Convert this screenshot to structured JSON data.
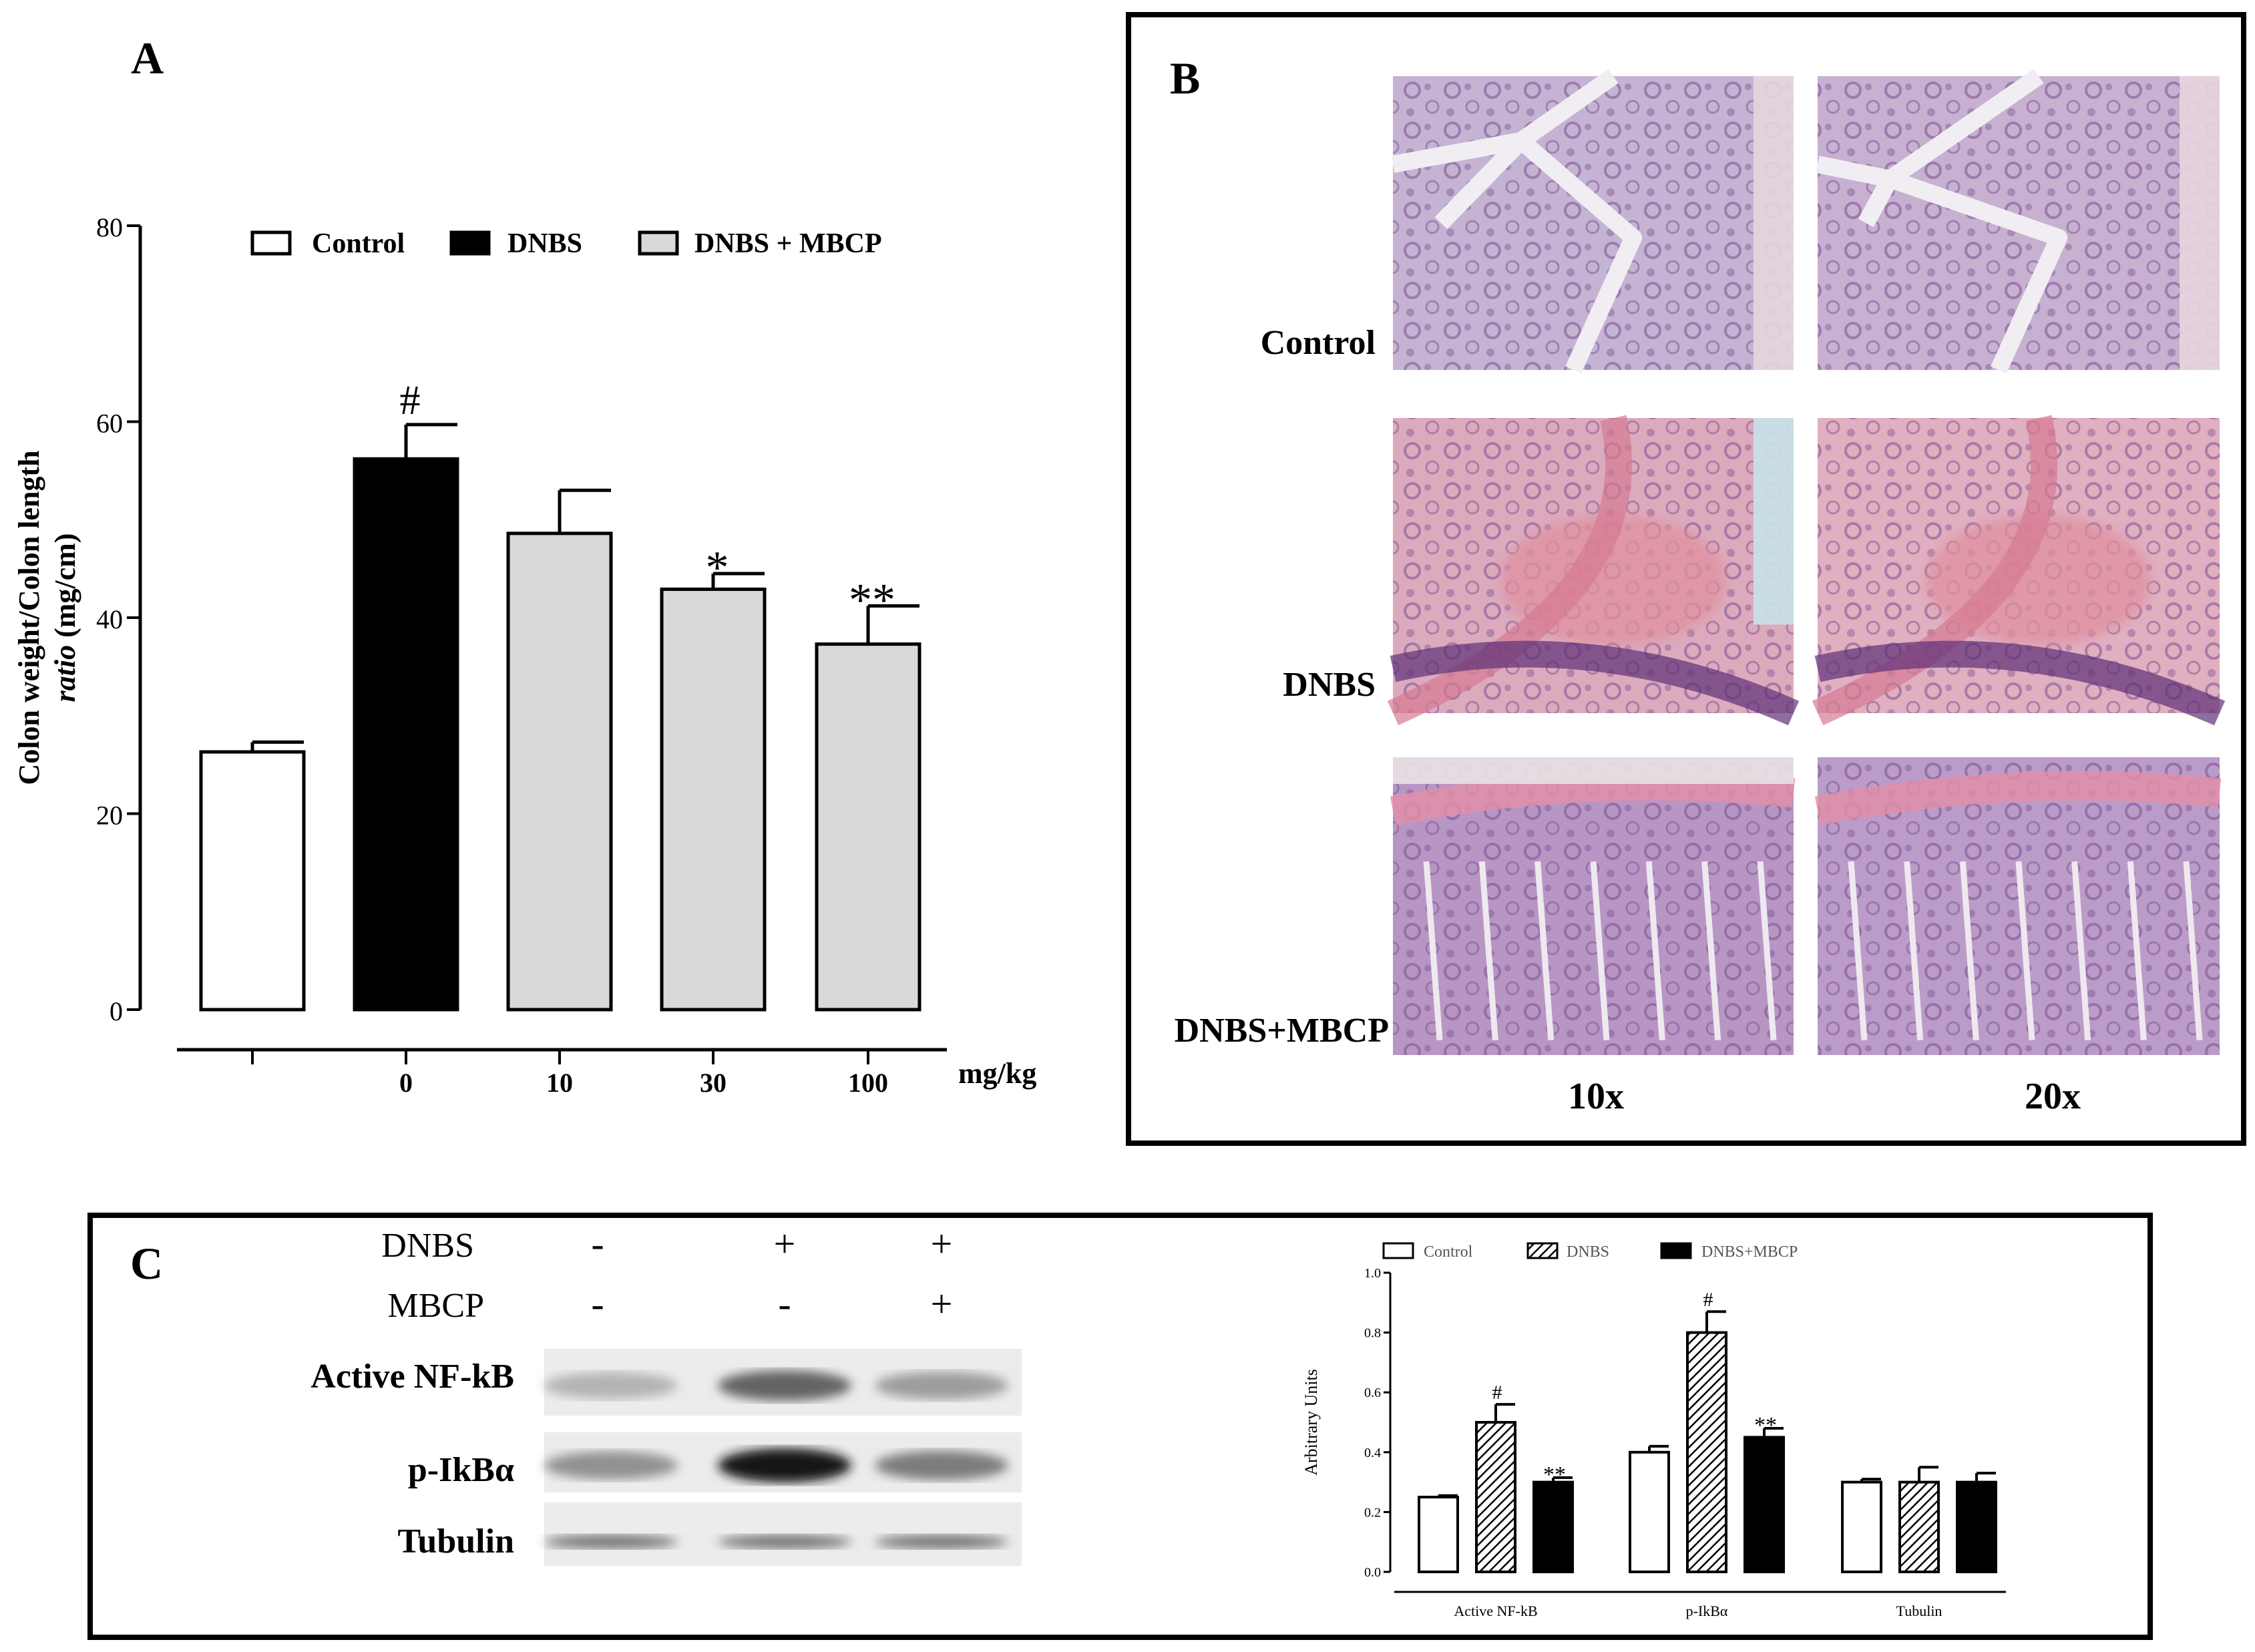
{
  "panel_labels": {
    "a": "A",
    "b": "B",
    "c": "C"
  },
  "chart_data": [
    {
      "type": "bar",
      "panel": "A",
      "ylabel_line1": "Colon weight/Colon length",
      "ylabel_line2_italic": "ratio",
      "ylabel_line2_unit": "(mg/cm)",
      "xunit": "mg/kg",
      "ylim": [
        0,
        80
      ],
      "yticks": [
        0,
        20,
        40,
        60,
        80
      ],
      "legend": [
        {
          "label": "Control",
          "fill": "#ffffff"
        },
        {
          "label": "DNBS",
          "fill": "#000000"
        },
        {
          "label": "DNBS + MBCP",
          "fill": "#d9d9d9"
        }
      ],
      "categories": [
        "-",
        "0",
        "10",
        "30",
        "100"
      ],
      "bars": [
        {
          "value": 26.3,
          "error": 1.0,
          "fill": "#ffffff",
          "annotation": ""
        },
        {
          "value": 56.2,
          "error": 3.5,
          "fill": "#000000",
          "annotation": "#"
        },
        {
          "value": 48.6,
          "error": 4.4,
          "fill": "#d9d9d9",
          "annotation": ""
        },
        {
          "value": 42.9,
          "error": 1.6,
          "fill": "#d9d9d9",
          "annotation": "*"
        },
        {
          "value": 37.3,
          "error": 3.9,
          "fill": "#d9d9d9",
          "annotation": "**"
        }
      ]
    },
    {
      "type": "bar",
      "panel": "C",
      "ylabel": "Arbitrary Units",
      "ylim": [
        0,
        1.0
      ],
      "yticks": [
        "0.0",
        "0.2",
        "0.4",
        "0.6",
        "0.8",
        "1.0"
      ],
      "categories": [
        "Active NF-kB",
        "p-IkBα",
        "Tubulin"
      ],
      "legend": [
        "Control",
        "DNBS",
        "DNBS+MBCP"
      ],
      "series": [
        {
          "name": "Control",
          "fill": "#ffffff",
          "values": [
            0.25,
            0.4,
            0.3
          ],
          "errors": [
            0.005,
            0.02,
            0.01
          ],
          "annotations": [
            "",
            "",
            ""
          ]
        },
        {
          "name": "DNBS",
          "fill": "hatch",
          "values": [
            0.5,
            0.8,
            0.3
          ],
          "errors": [
            0.06,
            0.07,
            0.05
          ],
          "annotations": [
            "#",
            "#",
            ""
          ]
        },
        {
          "name": "DNBS+MBCP",
          "fill": "#000000",
          "values": [
            0.3,
            0.45,
            0.3
          ],
          "errors": [
            0.015,
            0.03,
            0.03
          ],
          "annotations": [
            "**",
            "**",
            ""
          ]
        }
      ]
    }
  ],
  "panel_b": {
    "row_labels": [
      "Control",
      "DNBS",
      "DNBS+MBCP"
    ],
    "col_labels": [
      "10x",
      "20x"
    ],
    "tile_colors": [
      [
        "#c5b3d3",
        "#c7b0d0"
      ],
      [
        "#dcaabd",
        "#e0afc0"
      ],
      [
        "#b896c4",
        "#bb9cc8"
      ]
    ]
  },
  "panel_c_blot": {
    "conditions": {
      "dnbs_label": "DNBS",
      "mbcp_label": "MBCP",
      "dnbs": [
        "-",
        "+",
        "+"
      ],
      "mbcp": [
        "-",
        "-",
        "+"
      ]
    },
    "bands": [
      {
        "label": "Active NF-kB",
        "intensity": [
          0.25,
          0.6,
          0.35
        ]
      },
      {
        "label": "p-IkBα",
        "intensity": [
          0.4,
          0.95,
          0.5
        ]
      },
      {
        "label": "Tubulin",
        "intensity": [
          0.55,
          0.55,
          0.55
        ]
      }
    ]
  }
}
